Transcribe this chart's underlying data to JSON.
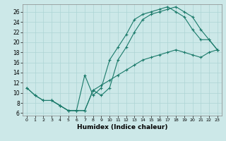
{
  "xlabel": "Humidex (Indice chaleur)",
  "bg_color": "#cce8e8",
  "line_color": "#1a7a6a",
  "grid_color": "#add4d4",
  "xlim": [
    -0.5,
    23.5
  ],
  "ylim": [
    5.5,
    27.5
  ],
  "xticks": [
    0,
    1,
    2,
    3,
    4,
    5,
    6,
    7,
    8,
    9,
    10,
    11,
    12,
    13,
    14,
    15,
    16,
    17,
    18,
    19,
    20,
    21,
    22,
    23
  ],
  "yticks": [
    6,
    8,
    10,
    12,
    14,
    16,
    18,
    20,
    22,
    24,
    26
  ],
  "line1_x": [
    0,
    1,
    2,
    3,
    4,
    5,
    6,
    7,
    8,
    9,
    10,
    11,
    12,
    13,
    14,
    15,
    16,
    17,
    18,
    19,
    20,
    21,
    22,
    23
  ],
  "line1_y": [
    11.0,
    9.5,
    8.5,
    8.5,
    7.5,
    6.5,
    6.5,
    6.5,
    10.5,
    9.5,
    11.0,
    16.5,
    19.0,
    22.0,
    24.5,
    25.5,
    26.0,
    26.5,
    27.0,
    26.0,
    25.0,
    22.5,
    20.5,
    18.5
  ],
  "line2_x": [
    0,
    1,
    2,
    3,
    4,
    5,
    6,
    7,
    8,
    9,
    10,
    11,
    12,
    13,
    14,
    15,
    16,
    17,
    18,
    19,
    20,
    21,
    22,
    23
  ],
  "line2_y": [
    11.0,
    9.5,
    8.5,
    8.5,
    7.5,
    6.5,
    6.5,
    13.5,
    9.5,
    11.0,
    16.5,
    19.0,
    21.5,
    24.5,
    25.5,
    26.0,
    26.5,
    27.0,
    26.0,
    25.0,
    22.5,
    20.5,
    20.5,
    18.5
  ],
  "line3_x": [
    3,
    4,
    5,
    6,
    7,
    8,
    9,
    10,
    11,
    12,
    13,
    14,
    15,
    16,
    17,
    18,
    19,
    20,
    21,
    22,
    23
  ],
  "line3_y": [
    8.5,
    7.5,
    6.5,
    6.5,
    6.5,
    10.5,
    11.5,
    12.5,
    13.5,
    14.5,
    15.5,
    16.5,
    17.0,
    17.5,
    18.0,
    18.5,
    18.0,
    17.5,
    17.0,
    18.0,
    18.5
  ]
}
